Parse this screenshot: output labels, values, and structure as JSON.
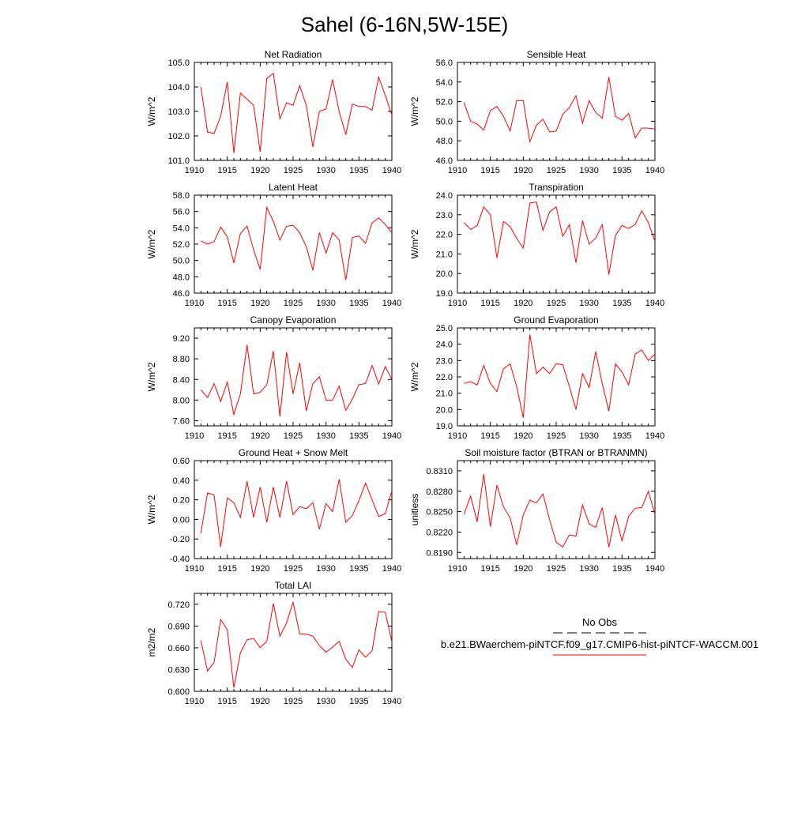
{
  "title": "Sahel (6-16N,5W-15E)",
  "legend": {
    "obs_label": "No Obs",
    "case_label": "b.e21.BWaerchem-piNTCF.f09_g17.CMIP6-hist-piNTCF-WACCM.001",
    "obs_color": "#000000",
    "case_color": "#ff0000"
  },
  "chart_data": [
    {
      "type": "line",
      "title": "Net Radiation",
      "ylabel": "W/m^2",
      "xlim": [
        1910,
        1940
      ],
      "ylim": [
        101.0,
        105.0
      ],
      "xticks": [
        "1910",
        "1915",
        "1920",
        "1925",
        "1930",
        "1935",
        "1940"
      ],
      "yticks": [
        "101.0",
        "102.0",
        "103.0",
        "104.0",
        "105.0"
      ],
      "x": [
        1911,
        1912,
        1913,
        1914,
        1915,
        1916,
        1917,
        1918,
        1919,
        1920,
        1921,
        1922,
        1923,
        1924,
        1925,
        1926,
        1927,
        1928,
        1929,
        1930,
        1931,
        1932,
        1933,
        1934,
        1935,
        1936,
        1937,
        1938,
        1939,
        1940
      ],
      "series": [
        {
          "color": "#ff0000",
          "values": [
            104.0,
            102.15,
            102.1,
            102.8,
            104.2,
            101.3,
            103.75,
            103.5,
            103.25,
            101.35,
            104.35,
            104.55,
            102.7,
            103.35,
            103.25,
            104.05,
            103.25,
            101.55,
            103.0,
            103.1,
            104.3,
            103.0,
            102.05,
            103.3,
            103.2,
            103.2,
            103.05,
            104.4,
            103.65,
            102.85
          ]
        }
      ]
    },
    {
      "type": "line",
      "title": "Sensible Heat",
      "ylabel": "W/m^2",
      "xlim": [
        1910,
        1940
      ],
      "ylim": [
        46.0,
        56.0
      ],
      "xticks": [
        "1910",
        "1915",
        "1920",
        "1925",
        "1930",
        "1935",
        "1940"
      ],
      "yticks": [
        "46.0",
        "48.0",
        "50.0",
        "52.0",
        "54.0",
        "56.0"
      ],
      "x": [
        1911,
        1912,
        1913,
        1914,
        1915,
        1916,
        1917,
        1918,
        1919,
        1920,
        1921,
        1922,
        1923,
        1924,
        1925,
        1926,
        1927,
        1928,
        1929,
        1930,
        1931,
        1932,
        1933,
        1934,
        1935,
        1936,
        1937,
        1938,
        1939,
        1940
      ],
      "series": [
        {
          "color": "#ff0000",
          "values": [
            51.9,
            50.0,
            49.7,
            49.1,
            51.1,
            51.5,
            50.5,
            49.0,
            52.1,
            52.1,
            47.9,
            49.6,
            50.2,
            48.9,
            49.0,
            50.7,
            51.4,
            52.6,
            49.8,
            52.1,
            50.9,
            50.3,
            54.5,
            50.5,
            50.1,
            50.8,
            48.3,
            49.3,
            49.3,
            49.2
          ]
        }
      ]
    },
    {
      "type": "line",
      "title": "Latent Heat",
      "ylabel": "W/m^2",
      "xlim": [
        1910,
        1940
      ],
      "ylim": [
        46.0,
        58.0
      ],
      "xticks": [
        "1910",
        "1915",
        "1920",
        "1925",
        "1930",
        "1935",
        "1940"
      ],
      "yticks": [
        "46.0",
        "48.0",
        "50.0",
        "52.0",
        "54.0",
        "56.0",
        "58.0"
      ],
      "x": [
        1911,
        1912,
        1913,
        1914,
        1915,
        1916,
        1917,
        1918,
        1919,
        1920,
        1921,
        1922,
        1923,
        1924,
        1925,
        1926,
        1927,
        1928,
        1929,
        1930,
        1931,
        1932,
        1933,
        1934,
        1935,
        1936,
        1937,
        1938,
        1939,
        1940
      ],
      "series": [
        {
          "color": "#ff0000",
          "values": [
            52.4,
            52.0,
            52.3,
            54.1,
            52.9,
            49.7,
            53.3,
            54.2,
            51.3,
            48.9,
            56.5,
            54.8,
            52.5,
            54.2,
            54.3,
            53.4,
            51.7,
            48.8,
            53.4,
            50.9,
            53.4,
            52.5,
            47.6,
            52.8,
            53.0,
            52.1,
            54.6,
            55.2,
            54.4,
            53.4
          ]
        }
      ]
    },
    {
      "type": "line",
      "title": "Transpiration",
      "ylabel": "W/m^2",
      "xlim": [
        1910,
        1940
      ],
      "ylim": [
        19.0,
        24.0
      ],
      "xticks": [
        "1910",
        "1915",
        "1920",
        "1925",
        "1930",
        "1935",
        "1940"
      ],
      "yticks": [
        "19.0",
        "20.0",
        "21.0",
        "22.0",
        "23.0",
        "24.0"
      ],
      "x": [
        1911,
        1912,
        1913,
        1914,
        1915,
        1916,
        1917,
        1918,
        1919,
        1920,
        1921,
        1922,
        1923,
        1924,
        1925,
        1926,
        1927,
        1928,
        1929,
        1930,
        1931,
        1932,
        1933,
        1934,
        1935,
        1936,
        1937,
        1938,
        1939,
        1940
      ],
      "series": [
        {
          "color": "#ff0000",
          "values": [
            22.6,
            22.25,
            22.45,
            23.4,
            23.0,
            20.8,
            22.65,
            22.4,
            21.8,
            21.3,
            23.6,
            23.65,
            22.2,
            23.15,
            23.4,
            21.9,
            22.5,
            20.55,
            22.7,
            21.5,
            21.8,
            22.5,
            19.95,
            21.95,
            22.45,
            22.3,
            22.5,
            23.2,
            22.6,
            21.65
          ]
        }
      ]
    },
    {
      "type": "line",
      "title": "Canopy Evaporation",
      "ylabel": "W/m^2",
      "xlim": [
        1910,
        1940
      ],
      "ylim": [
        7.5,
        9.4
      ],
      "xticks": [
        "1910",
        "1915",
        "1920",
        "1925",
        "1930",
        "1935",
        "1940"
      ],
      "yticks": [
        "7.60",
        "8.00",
        "8.40",
        "8.80",
        "9.20"
      ],
      "x": [
        1911,
        1912,
        1913,
        1914,
        1915,
        1916,
        1917,
        1918,
        1919,
        1920,
        1921,
        1922,
        1923,
        1924,
        1925,
        1926,
        1927,
        1928,
        1929,
        1930,
        1931,
        1932,
        1933,
        1934,
        1935,
        1936,
        1937,
        1938,
        1939,
        1940
      ],
      "series": [
        {
          "color": "#ff0000",
          "values": [
            8.2,
            8.05,
            8.32,
            7.97,
            8.35,
            7.72,
            8.12,
            9.07,
            8.12,
            8.15,
            8.3,
            8.95,
            7.68,
            8.93,
            8.12,
            8.72,
            7.79,
            8.32,
            8.45,
            8.0,
            8.0,
            8.27,
            7.8,
            8.02,
            8.3,
            8.32,
            8.67,
            8.31,
            8.65,
            8.4
          ]
        }
      ]
    },
    {
      "type": "line",
      "title": "Ground Evaporation",
      "ylabel": "W/m^2",
      "xlim": [
        1910,
        1940
      ],
      "ylim": [
        19.0,
        25.0
      ],
      "xticks": [
        "1910",
        "1915",
        "1920",
        "1925",
        "1930",
        "1935",
        "1940"
      ],
      "yticks": [
        "19.0",
        "20.0",
        "21.0",
        "22.0",
        "23.0",
        "24.0",
        "25.0"
      ],
      "x": [
        1911,
        1912,
        1913,
        1914,
        1915,
        1916,
        1917,
        1918,
        1919,
        1920,
        1921,
        1922,
        1923,
        1924,
        1925,
        1926,
        1927,
        1928,
        1929,
        1930,
        1931,
        1932,
        1933,
        1934,
        1935,
        1936,
        1937,
        1938,
        1939,
        1940
      ],
      "series": [
        {
          "color": "#ff0000",
          "values": [
            21.6,
            21.7,
            21.5,
            22.7,
            21.6,
            21.1,
            22.5,
            22.8,
            21.4,
            19.5,
            24.6,
            22.2,
            22.6,
            22.2,
            22.8,
            22.75,
            21.4,
            20.0,
            22.2,
            21.35,
            23.55,
            21.6,
            19.9,
            22.8,
            22.3,
            21.5,
            23.4,
            23.65,
            23.0,
            23.4
          ]
        }
      ]
    },
    {
      "type": "line",
      "title": "Ground Heat + Snow Melt",
      "ylabel": "W/m^2",
      "xlim": [
        1910,
        1940
      ],
      "ylim": [
        -0.4,
        0.6
      ],
      "xticks": [
        "1910",
        "1915",
        "1920",
        "1925",
        "1930",
        "1935",
        "1940"
      ],
      "yticks": [
        "-0.40",
        "-0.20",
        "0.00",
        "0.20",
        "0.40",
        "0.60"
      ],
      "x": [
        1911,
        1912,
        1913,
        1914,
        1915,
        1916,
        1917,
        1918,
        1919,
        1920,
        1921,
        1922,
        1923,
        1924,
        1925,
        1926,
        1927,
        1928,
        1929,
        1930,
        1931,
        1932,
        1933,
        1934,
        1935,
        1936,
        1937,
        1938,
        1939,
        1940
      ],
      "series": [
        {
          "color": "#ff0000",
          "values": [
            -0.14,
            0.27,
            0.25,
            -0.28,
            0.22,
            0.17,
            0.02,
            0.39,
            0.02,
            0.33,
            -0.03,
            0.33,
            0.02,
            0.39,
            0.05,
            0.13,
            0.11,
            0.17,
            -0.1,
            0.16,
            0.08,
            0.41,
            -0.03,
            0.04,
            0.19,
            0.37,
            0.2,
            0.03,
            0.06,
            0.29
          ]
        }
      ]
    },
    {
      "type": "line",
      "title": "Soil moisture factor (BTRAN or BTRANMN)",
      "ylabel": "unitless",
      "xlim": [
        1910,
        1940
      ],
      "ylim": [
        0.8181,
        0.8325
      ],
      "xticks": [
        "1910",
        "1915",
        "1920",
        "1925",
        "1930",
        "1935",
        "1940"
      ],
      "yticks": [
        "0.8190",
        "0.8220",
        "0.8250",
        "0.8280",
        "0.8310"
      ],
      "x": [
        1911,
        1912,
        1913,
        1914,
        1915,
        1916,
        1917,
        1918,
        1919,
        1920,
        1921,
        1922,
        1923,
        1924,
        1925,
        1926,
        1927,
        1928,
        1929,
        1930,
        1931,
        1932,
        1933,
        1934,
        1935,
        1936,
        1937,
        1938,
        1939,
        1940
      ],
      "series": [
        {
          "color": "#ff0000",
          "values": [
            0.8246,
            0.8273,
            0.8235,
            0.8305,
            0.8228,
            0.8289,
            0.8257,
            0.8241,
            0.8201,
            0.8245,
            0.8267,
            0.8263,
            0.8276,
            0.8238,
            0.8205,
            0.8198,
            0.8216,
            0.8214,
            0.826,
            0.8232,
            0.8227,
            0.8256,
            0.8198,
            0.8245,
            0.8207,
            0.8243,
            0.8255,
            0.8256,
            0.828,
            0.8246
          ]
        }
      ]
    },
    {
      "type": "line",
      "title": "Total LAI",
      "ylabel": "m2/m2",
      "xlim": [
        1910,
        1940
      ],
      "ylim": [
        0.6,
        0.735
      ],
      "xticks": [
        "1910",
        "1915",
        "1920",
        "1925",
        "1930",
        "1935",
        "1940"
      ],
      "yticks": [
        "0.600",
        "0.630",
        "0.660",
        "0.690",
        "0.720"
      ],
      "x": [
        1911,
        1912,
        1913,
        1914,
        1915,
        1916,
        1917,
        1918,
        1919,
        1920,
        1921,
        1922,
        1923,
        1924,
        1925,
        1926,
        1927,
        1928,
        1929,
        1930,
        1931,
        1932,
        1933,
        1934,
        1935,
        1936,
        1937,
        1938,
        1939,
        1940
      ],
      "series": [
        {
          "color": "#ff0000",
          "values": [
            0.67,
            0.628,
            0.64,
            0.699,
            0.685,
            0.605,
            0.653,
            0.671,
            0.673,
            0.66,
            0.669,
            0.721,
            0.676,
            0.694,
            0.723,
            0.679,
            0.679,
            0.676,
            0.663,
            0.654,
            0.661,
            0.669,
            0.644,
            0.633,
            0.657,
            0.647,
            0.656,
            0.71,
            0.709,
            0.668
          ]
        }
      ]
    }
  ]
}
